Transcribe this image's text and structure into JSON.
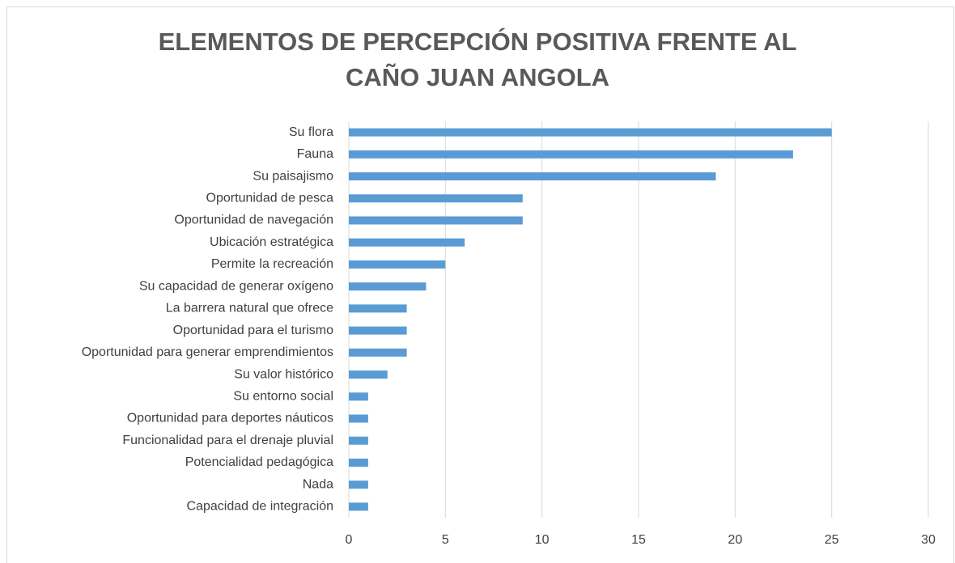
{
  "chart_data": {
    "type": "bar",
    "orientation": "horizontal",
    "title": "ELEMENTOS DE PERCEPCIÓN POSITIVA FRENTE AL CAÑO JUAN ANGOLA",
    "categories": [
      "Su flora",
      "Fauna",
      "Su paisajismo",
      "Oportunidad de pesca",
      "Oportunidad de navegación",
      "Ubicación estratégica",
      "Permite la recreación",
      "Su capacidad de generar oxígeno",
      "La barrera natural que ofrece",
      "Oportunidad para el turismo",
      "Oportunidad para generar emprendimientos",
      "Su valor histórico",
      "Su entorno social",
      "Oportunidad para deportes náuticos",
      "Funcionalidad para el drenaje pluvial",
      "Potencialidad pedagógica",
      "Nada",
      "Capacidad de integración"
    ],
    "values": [
      25,
      23,
      19,
      9,
      9,
      6,
      5,
      4,
      3,
      3,
      3,
      2,
      1,
      1,
      1,
      1,
      1,
      1
    ],
    "color": "#5b9bd5",
    "xlim": [
      0,
      30
    ],
    "xticks": [
      0,
      5,
      10,
      15,
      20,
      25,
      30
    ],
    "grid": true
  }
}
